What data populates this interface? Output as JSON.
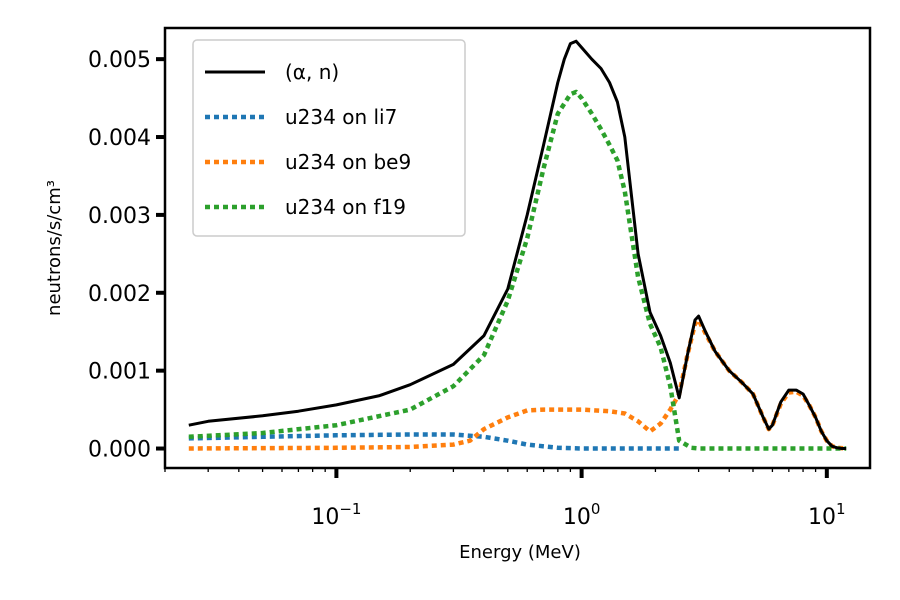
{
  "chart_data": {
    "type": "line",
    "xscale": "log",
    "xlabel": "Energy (MeV)",
    "ylabel": "neutrons/s/cm³",
    "xlim": [
      0.02,
      15
    ],
    "ylim": [
      -0.00025,
      0.0054
    ],
    "yticks": [
      0.0,
      0.001,
      0.002,
      0.003,
      0.004,
      0.005
    ],
    "ytick_labels": [
      "0.000",
      "0.001",
      "0.002",
      "0.003",
      "0.004",
      "0.005"
    ],
    "xticks": [
      0.1,
      1,
      10
    ],
    "xtick_labels": [
      {
        "base": "10",
        "exp": "−1"
      },
      {
        "base": "10",
        "exp": "0"
      },
      {
        "base": "10",
        "exp": "1"
      }
    ],
    "legend_position": "top-left",
    "series": [
      {
        "name": "(α, n)",
        "color": "#000000",
        "style": "solid",
        "x": [
          0.025,
          0.03,
          0.05,
          0.07,
          0.1,
          0.15,
          0.2,
          0.3,
          0.4,
          0.5,
          0.6,
          0.7,
          0.8,
          0.85,
          0.9,
          0.95,
          1.0,
          1.1,
          1.2,
          1.3,
          1.4,
          1.5,
          1.7,
          1.9,
          2.1,
          2.3,
          2.5,
          2.7,
          2.9,
          3.0,
          3.2,
          3.5,
          4.0,
          4.5,
          5.0,
          5.5,
          5.8,
          6.0,
          6.5,
          7.0,
          7.5,
          8.0,
          8.5,
          9.0,
          9.5,
          10.0,
          10.5,
          11.0,
          11.5,
          12.0
        ],
        "y": [
          0.0003,
          0.00035,
          0.00042,
          0.00048,
          0.00056,
          0.00068,
          0.00082,
          0.00108,
          0.00145,
          0.00205,
          0.003,
          0.0039,
          0.0047,
          0.005,
          0.0052,
          0.00523,
          0.00515,
          0.005,
          0.00488,
          0.0047,
          0.00445,
          0.004,
          0.0025,
          0.00175,
          0.00145,
          0.0011,
          0.00065,
          0.0012,
          0.00165,
          0.0017,
          0.0015,
          0.00125,
          0.001,
          0.00085,
          0.0007,
          0.0004,
          0.00025,
          0.0003,
          0.0006,
          0.00075,
          0.00075,
          0.0007,
          0.00055,
          0.0004,
          0.00022,
          0.0001,
          3e-05,
          1e-05,
          0.0,
          0.0
        ]
      },
      {
        "name": "u234 on li7",
        "color": "#1f77b4",
        "style": "dotted",
        "x": [
          0.025,
          0.05,
          0.1,
          0.2,
          0.3,
          0.4,
          0.5,
          0.6,
          0.8,
          1.0,
          1.5,
          2.0,
          2.5
        ],
        "y": [
          0.00013,
          0.00015,
          0.00017,
          0.00018,
          0.00018,
          0.00015,
          0.0001,
          5e-05,
          1e-05,
          0.0,
          0.0,
          0.0,
          0.0
        ]
      },
      {
        "name": "u234 on be9",
        "color": "#ff7f0e",
        "style": "dotted",
        "x": [
          0.025,
          0.1,
          0.2,
          0.3,
          0.35,
          0.4,
          0.5,
          0.6,
          0.7,
          1.0,
          1.3,
          1.5,
          1.7,
          1.9,
          2.1,
          2.3,
          2.5,
          2.7,
          2.9,
          3.0,
          3.2,
          3.5,
          4.0,
          4.5,
          5.0,
          5.5,
          5.8,
          6.0,
          6.5,
          7.0,
          7.5,
          8.0,
          8.5,
          9.0,
          9.5,
          10.0,
          10.5,
          11.0,
          12.0
        ],
        "y": [
          0.0,
          1e-05,
          2e-05,
          5e-05,
          0.0001,
          0.00025,
          0.0004,
          0.00049,
          0.0005,
          0.0005,
          0.00048,
          0.00045,
          0.00035,
          0.00022,
          0.00032,
          0.0005,
          0.0007,
          0.0012,
          0.0016,
          0.00165,
          0.00148,
          0.00125,
          0.001,
          0.00085,
          0.0007,
          0.0004,
          0.00025,
          0.0003,
          0.00058,
          0.00072,
          0.00073,
          0.00068,
          0.00055,
          0.0004,
          0.00022,
          0.0001,
          3e-05,
          1e-05,
          0.0
        ]
      },
      {
        "name": "u234 on f19",
        "color": "#2ca02c",
        "style": "dotted",
        "x": [
          0.025,
          0.05,
          0.1,
          0.2,
          0.3,
          0.4,
          0.5,
          0.6,
          0.7,
          0.8,
          0.9,
          0.95,
          1.0,
          1.1,
          1.2,
          1.3,
          1.4,
          1.5,
          1.7,
          1.9,
          2.1,
          2.3,
          2.5,
          2.8,
          3.0,
          5.0,
          8.0,
          12.0
        ],
        "y": [
          0.00015,
          0.0002,
          0.0003,
          0.0005,
          0.0008,
          0.0012,
          0.0019,
          0.0027,
          0.0036,
          0.0043,
          0.00455,
          0.00458,
          0.0045,
          0.0043,
          0.0041,
          0.0039,
          0.0037,
          0.0033,
          0.0022,
          0.0016,
          0.0013,
          0.0008,
          0.0001,
          1e-05,
          0.0,
          0.0,
          0.0,
          0.0
        ]
      }
    ]
  }
}
